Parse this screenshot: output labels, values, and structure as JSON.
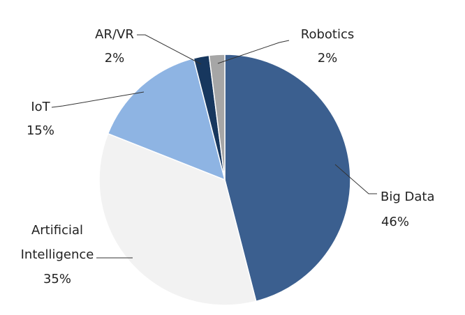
{
  "chart_data": {
    "type": "pie",
    "title": "",
    "unit": "%",
    "slices": [
      {
        "name": "Big Data",
        "value": 46,
        "label": "46%",
        "color": "#3B5F8F"
      },
      {
        "name": "Artificial Intelligence",
        "name_lines": [
          "Artificial",
          "Intelligence"
        ],
        "value": 35,
        "label": "35%",
        "color": "#F2F2F2"
      },
      {
        "name": "IoT",
        "value": 15,
        "label": "15%",
        "color": "#8EB4E3"
      },
      {
        "name": "AR/VR",
        "value": 2,
        "label": "2%",
        "color": "#17375E"
      },
      {
        "name": "Robotics",
        "value": 2,
        "label": "2%",
        "color": "#A6A6A6"
      }
    ],
    "legend": "none"
  }
}
